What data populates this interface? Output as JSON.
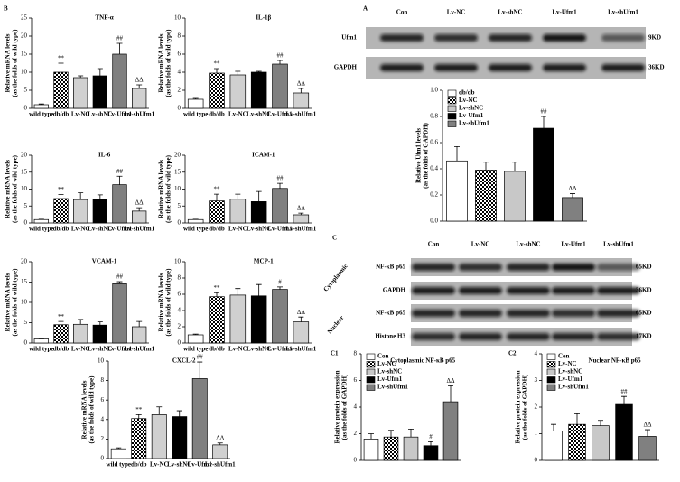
{
  "panel_labels": [
    "B",
    "C1",
    "C2"
  ],
  "blots": [
    {
      "letter": "A",
      "lanes": [
        "Con",
        "Lv-NC",
        "Lv-shNC",
        "Lv-Ufm1",
        "Lv-shUfm1"
      ],
      "rows": [
        {
          "label": "Ufm1",
          "size": "9KD"
        },
        {
          "label": "GAPDH",
          "size": "36KD"
        }
      ]
    },
    {
      "letter": "C",
      "lanes": [
        "Con",
        "Lv-NC",
        "Lv-shNC",
        "Lv-Ufm1",
        "Lv-shUfm1"
      ],
      "rows": [
        {
          "label": "NF-κB p65",
          "size": "65KD"
        },
        {
          "label": "GAPDH",
          "size": "36KD"
        },
        {
          "label": "NF-κB p65",
          "size": "65KD"
        },
        {
          "label": "Histone H3",
          "size": "17KD"
        }
      ],
      "groups": [
        "Cytoplasmic",
        "Nuclear"
      ]
    }
  ],
  "chart_data": [
    {
      "type": "bar",
      "title": "TNF-α",
      "y_label": [
        "Relative mRNA levels",
        "(as the folds of wild type)"
      ],
      "categories": [
        "wild type",
        "db/db",
        "Lv-NC",
        "Lv-shNC",
        "Lv-Ufm1",
        "Lv-shUfm1"
      ],
      "values": [
        1,
        10,
        8.5,
        9,
        15,
        5.5
      ],
      "errors": [
        0.2,
        2.5,
        0.5,
        2,
        3,
        1
      ],
      "annotations": [
        null,
        "**",
        null,
        null,
        "##",
        "ΔΔ"
      ],
      "fills": [
        "#ffffff",
        "checkered",
        "#d0d0d0",
        "#000000",
        "#808080",
        "#d0d0d0"
      ],
      "ylim": [
        0,
        25
      ],
      "yticks": [
        0,
        5,
        10,
        15,
        20,
        25
      ],
      "legend": false
    },
    {
      "type": "bar",
      "title": "IL-1β",
      "y_label": [
        "Relative mRNA levels",
        "(as the folds of wild type)"
      ],
      "categories": [
        "wild type",
        "db/db",
        "Lv-NC",
        "Lv-shNC",
        "Lv-Ufm1",
        "Lv-shUfm1"
      ],
      "values": [
        1,
        3.9,
        3.7,
        4,
        4.9,
        1.7
      ],
      "errors": [
        0.1,
        0.5,
        0.4,
        0.1,
        0.4,
        0.5
      ],
      "annotations": [
        null,
        "**",
        null,
        null,
        "##",
        "ΔΔ"
      ],
      "fills": [
        "#ffffff",
        "checkered",
        "#d0d0d0",
        "#000000",
        "#808080",
        "#d0d0d0"
      ],
      "ylim": [
        0,
        10
      ],
      "yticks": [
        0,
        2,
        4,
        6,
        8,
        10
      ],
      "legend": false
    },
    {
      "type": "bar",
      "title": "IL-6",
      "y_label": [
        "Relative mRNA levels",
        "(as the folds of wild type)"
      ],
      "categories": [
        "wild type",
        "db/db",
        "Lv-NC",
        "Lv-shNC",
        "Lv-Ufm1",
        "Lv-shUfm1"
      ],
      "values": [
        1,
        7.2,
        6.9,
        7.1,
        11.3,
        3.5
      ],
      "errors": [
        0.1,
        1.2,
        2,
        1.2,
        2.5,
        1
      ],
      "annotations": [
        null,
        "**",
        null,
        null,
        "##",
        "ΔΔ"
      ],
      "fills": [
        "#ffffff",
        "checkered",
        "#d0d0d0",
        "#000000",
        "#808080",
        "#d0d0d0"
      ],
      "ylim": [
        0,
        20
      ],
      "yticks": [
        0,
        5,
        10,
        15,
        20
      ],
      "legend": false
    },
    {
      "type": "bar",
      "title": "ICAM-1",
      "y_label": [
        "Relative mRNA levels",
        "(as the folds of wild type)"
      ],
      "categories": [
        "wild type",
        "db/db",
        "Lv-NC",
        "Lv-shNC",
        "Lv-Ufm1",
        "Lv-shUfm1"
      ],
      "values": [
        1,
        6.5,
        7,
        6.3,
        10.2,
        2.4
      ],
      "errors": [
        0.1,
        2,
        1.5,
        3,
        1.5,
        0.5
      ],
      "annotations": [
        null,
        "**",
        null,
        null,
        "##",
        "ΔΔ"
      ],
      "fills": [
        "#ffffff",
        "checkered",
        "#d0d0d0",
        "#000000",
        "#808080",
        "#d0d0d0"
      ],
      "ylim": [
        0,
        20
      ],
      "yticks": [
        0,
        5,
        10,
        15,
        20
      ],
      "legend": false
    },
    {
      "type": "bar",
      "title": "VCAM-1",
      "y_label": [
        "Relative mRNA levels",
        "(as the folds of wild type)"
      ],
      "categories": [
        "wild type",
        "db/db",
        "Lv-NC",
        "Lv-shNC",
        "Lv-Ufm1",
        "Lv-shUfm1"
      ],
      "values": [
        1,
        4.5,
        4.6,
        4.4,
        14.6,
        4
      ],
      "errors": [
        0.1,
        0.8,
        1.2,
        0.8,
        0.5,
        1.3
      ],
      "annotations": [
        null,
        "**",
        null,
        null,
        "##",
        null
      ],
      "fills": [
        "#ffffff",
        "checkered",
        "#d0d0d0",
        "#000000",
        "#808080",
        "#d0d0d0"
      ],
      "ylim": [
        0,
        20
      ],
      "yticks": [
        0,
        5,
        10,
        15,
        20
      ],
      "legend": false
    },
    {
      "type": "bar",
      "title": "MCP-1",
      "y_label": [
        "Relative mRNA levels",
        "(as the folds of wild type)"
      ],
      "categories": [
        "wild type",
        "db/db",
        "Lv-NC",
        "Lv-shNC",
        "Lv-Ufm1",
        "Lv-shUfm1"
      ],
      "values": [
        1,
        5.7,
        5.9,
        5.8,
        6.6,
        2.6
      ],
      "errors": [
        0.1,
        0.5,
        0.8,
        1.4,
        0.3,
        0.6
      ],
      "annotations": [
        null,
        "**",
        null,
        null,
        "#",
        "ΔΔ"
      ],
      "fills": [
        "#ffffff",
        "checkered",
        "#d0d0d0",
        "#000000",
        "#808080",
        "#d0d0d0"
      ],
      "ylim": [
        0,
        10
      ],
      "yticks": [
        0,
        2,
        4,
        6,
        8,
        10
      ],
      "legend": false
    },
    {
      "type": "bar",
      "title": "CXCL-2",
      "y_label": [
        "Relative mRNA levels",
        "(as the folds of wild type)"
      ],
      "categories": [
        "wild type",
        "db/db",
        "Lv-NC",
        "Lv-shNC",
        "Lv-Ufm1",
        "Lv-shUfm1"
      ],
      "values": [
        1,
        4.1,
        4.5,
        4.3,
        8.2,
        1.4
      ],
      "errors": [
        0.1,
        0.4,
        0.8,
        0.6,
        1.7,
        0.2
      ],
      "annotations": [
        null,
        "**",
        null,
        null,
        "##",
        "ΔΔ"
      ],
      "fills": [
        "#ffffff",
        "checkered",
        "#d0d0d0",
        "#000000",
        "#808080",
        "#d0d0d0"
      ],
      "ylim": [
        0,
        10
      ],
      "yticks": [
        0,
        2,
        4,
        6,
        8,
        10
      ],
      "legend": false
    },
    {
      "type": "bar",
      "y_label": [
        "Relative Ufm1 levels",
        "(as the folds of GAPDH)"
      ],
      "categories": [
        "db/db",
        "Lv-NC",
        "Lv-shNC",
        "Lv-Ufm1",
        "Lv-shUfm1"
      ],
      "values": [
        0.46,
        0.39,
        0.38,
        0.71,
        0.18
      ],
      "errors": [
        0.11,
        0.06,
        0.07,
        0.09,
        0.03
      ],
      "annotations": [
        null,
        null,
        null,
        "##",
        "ΔΔ"
      ],
      "fills": [
        "#ffffff",
        "checkered",
        "#c8c8c8",
        "#000000",
        "#808080"
      ],
      "ylim": [
        0,
        1
      ],
      "yticks": [
        {
          "value": 0,
          "label": "0.0"
        },
        0.2,
        0.4,
        0.6,
        0.8,
        {
          "value": 1,
          "label": "1.0"
        }
      ],
      "legend": true
    },
    {
      "type": "bar",
      "title": "Cytoplasmic NF-κB p65",
      "y_label": [
        "Relative protein expression",
        "(as the folds of GAPDH)"
      ],
      "categories": [
        "Con",
        "Lv-NC",
        "Lv-shNC",
        "Lv-Ufm1",
        "Lv-shUfm1"
      ],
      "values": [
        1.6,
        1.75,
        1.75,
        1.1,
        4.4
      ],
      "errors": [
        0.4,
        0.5,
        0.6,
        0.3,
        1.2
      ],
      "annotations": [
        null,
        null,
        null,
        "#",
        "ΔΔ"
      ],
      "fills": [
        "#ffffff",
        "checkered",
        "#c8c8c8",
        "#000000",
        "#808080"
      ],
      "ylim": [
        0,
        8
      ],
      "yticks": [
        0,
        2,
        4,
        6,
        8
      ],
      "legend": true
    },
    {
      "type": "bar",
      "title": "Nuclear NF-κB p65",
      "y_label": [
        "Relative protein expression",
        "(as the folds of GAPDH)"
      ],
      "categories": [
        "Con",
        "Lv-NC",
        "Lv-shNC",
        "Lv-Ufm1",
        "Lv-shUfm1"
      ],
      "values": [
        1.1,
        1.35,
        1.3,
        2.1,
        0.9
      ],
      "errors": [
        0.25,
        0.4,
        0.2,
        0.3,
        0.25
      ],
      "annotations": [
        null,
        null,
        null,
        "##",
        "ΔΔ"
      ],
      "fills": [
        "#ffffff",
        "checkered",
        "#c8c8c8",
        "#000000",
        "#808080"
      ],
      "ylim": [
        0,
        4
      ],
      "yticks": [
        0,
        1,
        2,
        3,
        4
      ],
      "legend": true
    }
  ]
}
